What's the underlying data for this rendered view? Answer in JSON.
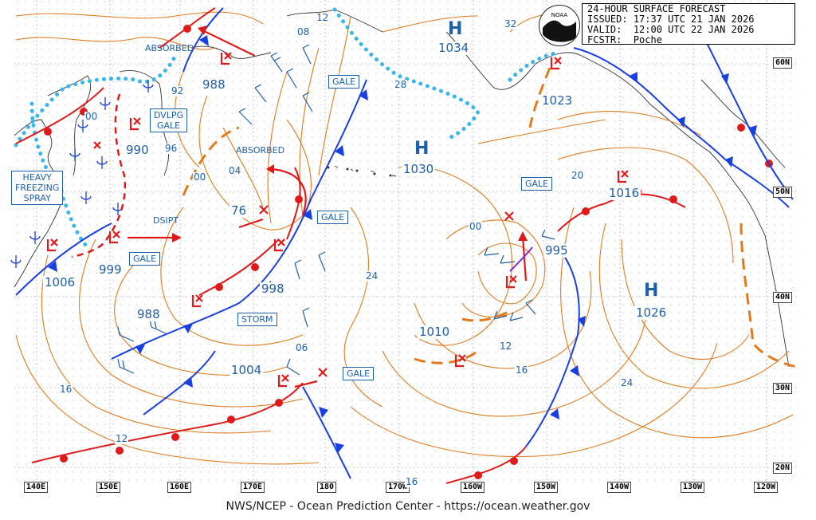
{
  "header": {
    "title": "24-HOUR SURFACE FORECAST",
    "issued_label": "ISSUED:",
    "issued": "17:37 UTC 21 JAN 2026",
    "valid_label": "VALID:",
    "valid": "12:00 UTC 22 JAN 2026",
    "fcstr_label": "FCSTR:",
    "fcstr": "Poche",
    "logo_text": "NOAA"
  },
  "footer": {
    "credit": "NWS/NCEP - Ocean Prediction Center - https://ocean.weather.gov"
  },
  "latitude_labels": [
    "60N",
    "50N",
    "40N",
    "30N",
    "20N"
  ],
  "longitude_labels": [
    "140E",
    "150E",
    "160E",
    "170E",
    "180",
    "170W",
    "160W",
    "150W",
    "140W",
    "130W",
    "120W"
  ],
  "high_pressure_centers": [
    {
      "symbol": "H",
      "pressure": "1034"
    },
    {
      "symbol": "H",
      "pressure": "1030"
    },
    {
      "symbol": "H",
      "pressure": "1026"
    }
  ],
  "low_pressure_values": [
    "988",
    "990",
    "999",
    "1006",
    "76",
    "998",
    "988",
    "1004",
    "1010",
    "995",
    "1016",
    "1023"
  ],
  "isobar_labels": [
    "12",
    "08",
    "28",
    "32",
    "92",
    "00",
    "96",
    "00",
    "04",
    "24",
    "00",
    "20",
    "12",
    "16",
    "24",
    "06",
    "16",
    "12",
    "16"
  ],
  "warning_boxes": {
    "absorbed_1": "ABSORBED",
    "absorbed_2": "ABSORBED",
    "dvlpg_gale_1": "DVLPG",
    "dvlpg_gale_2": "GALE",
    "heavy_freezing_spray_1": "HEAVY",
    "heavy_freezing_spray_2": "FREEZING",
    "heavy_freezing_spray_3": "SPRAY",
    "dsipt": "DSIPT",
    "gale_1": "GALE",
    "gale_2": "GALE",
    "gale_3": "GALE",
    "gale_4": "GALE",
    "gale_5": "GALE",
    "storm": "STORM"
  },
  "colors": {
    "isobar": "#e07b1f",
    "cold_front": "#1a3fe0",
    "warm_front": "#e01a1a",
    "ice_edge": "#39b7ea",
    "label_text": "#1f5fa8",
    "grid_dots": "#c8c8c8",
    "coastline": "#333333"
  }
}
